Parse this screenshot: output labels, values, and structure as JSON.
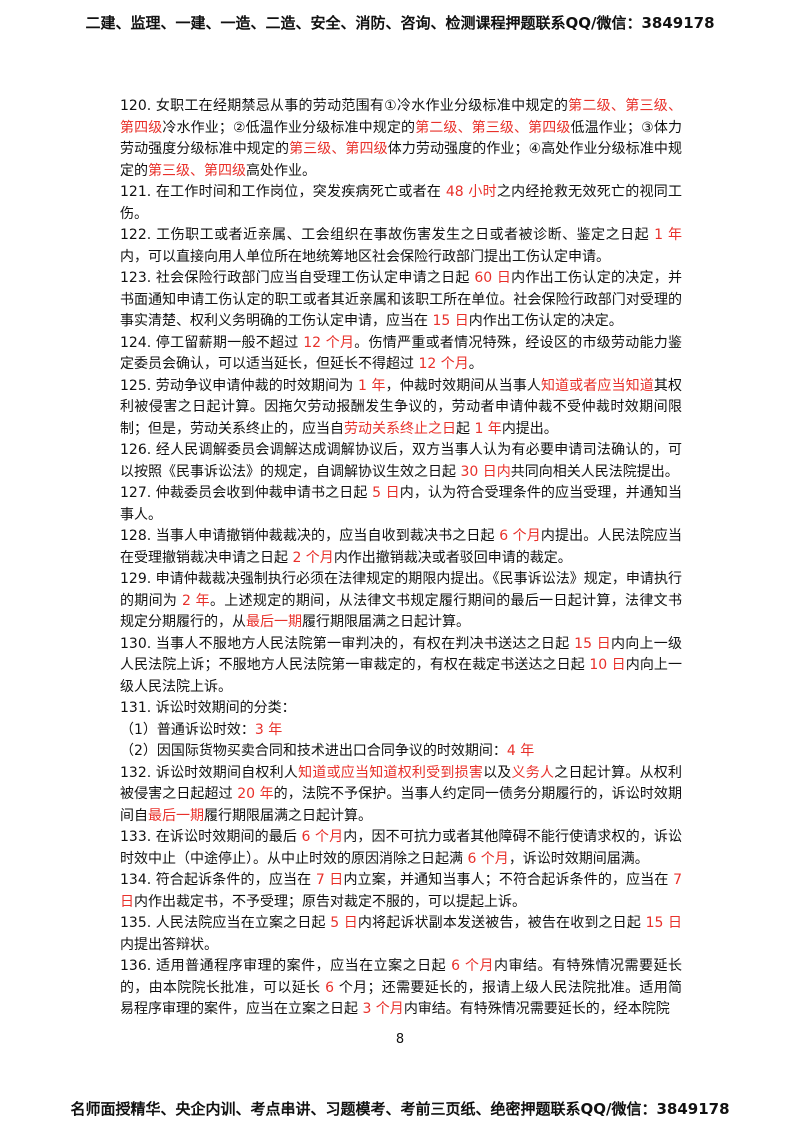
{
  "header": "二建、监理、一建、一造、二造、安全、消防、咨询、检测课程押题联系QQ/微信：3849178",
  "paragraphs": [
    {
      "runs": [
        {
          "text": "120. 女职工在经期禁忌从事的劳动范围有①冷水作业分级标准中规定的"
        },
        {
          "text": "第二级、第三级、第四级",
          "color": "#e8302a"
        },
        {
          "text": "冷水作业；②低温作业分级标准中规定的"
        },
        {
          "text": "第二级、第三级、第四级",
          "color": "#e8302a"
        },
        {
          "text": "低温作业；③体力劳动强度分级标准中规定的"
        },
        {
          "text": "第三级、第四级",
          "color": "#e8302a"
        },
        {
          "text": "体力劳动强度的作业；④高处作业分级标准中规定的"
        },
        {
          "text": "第三级、第四级",
          "color": "#e8302a"
        },
        {
          "text": "高处作业。"
        }
      ]
    },
    {
      "runs": [
        {
          "text": "121. 在工作时间和工作岗位，突发疾病死亡或者在 "
        },
        {
          "text": "48 小时",
          "color": "#e8302a"
        },
        {
          "text": "之内经抢救无效死亡的视同工伤。"
        }
      ]
    },
    {
      "runs": [
        {
          "text": "122. 工伤职工或者近亲属、工会组织在事故伤害发生之日或者被诊断、鉴定之日起 "
        },
        {
          "text": "1 年",
          "color": "#e8302a"
        },
        {
          "text": "内，可以直接向用人单位所在地统筹地区社会保险行政部门提出工伤认定申请。"
        }
      ]
    },
    {
      "runs": [
        {
          "text": "123. 社会保险行政部门应当自受理工伤认定申请之日起 "
        },
        {
          "text": "60 日",
          "color": "#e8302a"
        },
        {
          "text": "内作出工伤认定的决定，并书面通知申请工伤认定的职工或者其近亲属和该职工所在单位。社会保险行政部门对受理的事实清楚、权利义务明确的工伤认定申请，应当在 "
        },
        {
          "text": "15 日",
          "color": "#e8302a"
        },
        {
          "text": "内作出工伤认定的决定。"
        }
      ]
    },
    {
      "runs": [
        {
          "text": "124. 停工留薪期一般不超过 "
        },
        {
          "text": "12 个月",
          "color": "#e8302a"
        },
        {
          "text": "。伤情严重或者情况特殊，经设区的市级劳动能力鉴定委员会确认，可以适当延长，但延长不得超过 "
        },
        {
          "text": "12 个月",
          "color": "#e8302a"
        },
        {
          "text": "。"
        }
      ]
    },
    {
      "runs": [
        {
          "text": "125. 劳动争议申请仲裁的时效期间为 "
        },
        {
          "text": "1 年",
          "color": "#e8302a"
        },
        {
          "text": "，仲裁时效期间从当事人"
        },
        {
          "text": "知道或者应当知道",
          "color": "#e8302a"
        },
        {
          "text": "其权利被侵害之日起计算。因拖欠劳动报酬发生争议的，劳动者申请仲裁不受仲裁时效期间限制；但是，劳动关系终止的，应当自"
        },
        {
          "text": "劳动关系终止之日",
          "color": "#e8302a"
        },
        {
          "text": "起 "
        },
        {
          "text": "1 年",
          "color": "#e8302a"
        },
        {
          "text": "内提出。"
        }
      ]
    },
    {
      "runs": [
        {
          "text": "126. 经人民调解委员会调解达成调解协议后，双方当事人认为有必要申请司法确认的，可以按照《民事诉讼法》的规定，自调解协议生效之日起 "
        },
        {
          "text": "30 日内",
          "color": "#e8302a"
        },
        {
          "text": "共同向相关人民法院提出。"
        }
      ]
    },
    {
      "runs": [
        {
          "text": "127. 仲裁委员会收到仲裁申请书之日起 "
        },
        {
          "text": "5 日",
          "color": "#e8302a"
        },
        {
          "text": "内，认为符合受理条件的应当受理，并通知当事人。"
        }
      ]
    },
    {
      "runs": [
        {
          "text": "128. 当事人申请撤销仲裁裁决的，应当自收到裁决书之日起 "
        },
        {
          "text": "6 个月",
          "color": "#e8302a"
        },
        {
          "text": "内提出。人民法院应当在受理撤销裁决申请之日起 "
        },
        {
          "text": "2 个月",
          "color": "#e8302a"
        },
        {
          "text": "内作出撤销裁决或者驳回申请的裁定。"
        }
      ]
    },
    {
      "runs": [
        {
          "text": "129. 申请仲裁裁决强制执行必须在法律规定的期限内提出。《民事诉讼法》规定，申请执行的期间为 "
        },
        {
          "text": "2 年",
          "color": "#e8302a"
        },
        {
          "text": "。上述规定的期间，从法律文书规定履行期间的最后一日起计算，法律文书规定分期履行的，从"
        },
        {
          "text": "最后一期",
          "color": "#e8302a"
        },
        {
          "text": "履行期限届满之日起计算。"
        }
      ]
    },
    {
      "runs": [
        {
          "text": "130. 当事人不服地方人民法院第一审判决的，有权在判决书送达之日起 "
        },
        {
          "text": "15 日",
          "color": "#e8302a"
        },
        {
          "text": "内向上一级人民法院上诉；不服地方人民法院第一审裁定的，有权在裁定书送达之日起 "
        },
        {
          "text": "10 日",
          "color": "#e8302a"
        },
        {
          "text": "内向上一级人民法院上诉。"
        }
      ]
    },
    {
      "runs": [
        {
          "text": "131. 诉讼时效期间的分类："
        }
      ]
    },
    {
      "runs": [
        {
          "text": "（1）普通诉讼时效："
        },
        {
          "text": "3 年",
          "color": "#e8302a"
        }
      ]
    },
    {
      "runs": [
        {
          "text": "（2）因国际货物买卖合同和技术进出口合同争议的时效期间："
        },
        {
          "text": "4 年",
          "color": "#e8302a"
        }
      ]
    },
    {
      "runs": [
        {
          "text": "132. 诉讼时效期间自权利人"
        },
        {
          "text": "知道或应当知道权利受到损害",
          "color": "#e8302a"
        },
        {
          "text": "以及"
        },
        {
          "text": "义务人",
          "color": "#e8302a"
        },
        {
          "text": "之日起计算。从权利被侵害之日起超过 "
        },
        {
          "text": "20 年",
          "color": "#e8302a"
        },
        {
          "text": "的，法院不予保护。当事人约定同一债务分期履行的，诉讼时效期间自"
        },
        {
          "text": "最后一期",
          "color": "#e8302a"
        },
        {
          "text": "履行期限届满之日起计算。"
        }
      ]
    },
    {
      "runs": [
        {
          "text": "133. 在诉讼时效期间的最后 "
        },
        {
          "text": "6 个月",
          "color": "#e8302a"
        },
        {
          "text": "内，因不可抗力或者其他障碍不能行使请求权的，诉讼时效中止（中途停止）。从中止时效的原因消除之日起满 "
        },
        {
          "text": "6 个月",
          "color": "#e8302a"
        },
        {
          "text": "，诉讼时效期间届满。"
        }
      ]
    },
    {
      "runs": [
        {
          "text": "134. 符合起诉条件的，应当在 "
        },
        {
          "text": "7 日",
          "color": "#e8302a"
        },
        {
          "text": "内立案，并通知当事人；不符合起诉条件的，应当在 "
        },
        {
          "text": "7 日",
          "color": "#e8302a"
        },
        {
          "text": "内作出裁定书，不予受理；原告对裁定不服的，可以提起上诉。"
        }
      ]
    },
    {
      "runs": [
        {
          "text": "135. 人民法院应当在立案之日起 "
        },
        {
          "text": "5 日",
          "color": "#e8302a"
        },
        {
          "text": "内将起诉状副本发送被告，被告在收到之日起 "
        },
        {
          "text": "15 日",
          "color": "#e8302a"
        },
        {
          "text": "内提出答辩状。"
        }
      ]
    },
    {
      "runs": [
        {
          "text": "136. 适用普通程序审理的案件，应当在立案之日起 "
        },
        {
          "text": "6 个月",
          "color": "#e8302a"
        },
        {
          "text": "内审结。有特殊情况需要延长的，由本院院长批准，可以延长 "
        },
        {
          "text": "6",
          "color": "#e8302a"
        },
        {
          "text": " 个月；还需要延长的，报请上级人民法院批准。适用简易程序审理的案件，应当在立案之日起 "
        },
        {
          "text": "3 个月",
          "color": "#e8302a"
        },
        {
          "text": "内审结。有特殊情况需要延长的，经本院院"
        }
      ]
    }
  ],
  "page_number": "8",
  "footer": "名师面授精华、央企内训、考点串讲、习题模考、考前三页纸、绝密押题联系QQ/微信：3849178"
}
